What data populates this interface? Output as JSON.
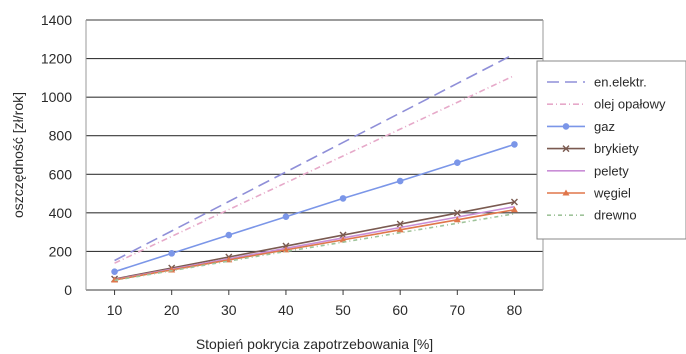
{
  "chart_data": {
    "type": "line",
    "title": "",
    "xlabel": "Stopień pokrycia zapotrzebowania [%]",
    "ylabel": "oszczędność [zł/rok]",
    "x": [
      10,
      20,
      30,
      40,
      50,
      60,
      70,
      80
    ],
    "xlim": [
      5,
      85
    ],
    "ylim": [
      0,
      1400
    ],
    "yticks": [
      0,
      200,
      400,
      600,
      800,
      1000,
      1200,
      1400
    ],
    "grid": "horizontal",
    "legend_position": "right",
    "series": [
      {
        "name": "en.elektr.",
        "color": "#8f8fd8",
        "dash": "12,6",
        "marker": "none",
        "values": [
          153,
          306,
          459,
          612,
          765,
          918,
          1071,
          1224
        ]
      },
      {
        "name": "olej opałowy",
        "color": "#e6a9c9",
        "dash": "6,3,1,3",
        "marker": "none",
        "values": [
          139,
          278,
          417,
          556,
          695,
          834,
          973,
          1112
        ]
      },
      {
        "name": "gaz",
        "color": "#7b96e8",
        "dash": "",
        "marker": "circle",
        "values": [
          95,
          190,
          285,
          380,
          475,
          565,
          660,
          755
        ]
      },
      {
        "name": "brykiety",
        "color": "#7a5a50",
        "dash": "",
        "marker": "x",
        "values": [
          57,
          114,
          171,
          228,
          285,
          342,
          399,
          456
        ]
      },
      {
        "name": "pelety",
        "color": "#c98ed6",
        "dash": "",
        "marker": "none",
        "values": [
          54,
          108,
          162,
          216,
          270,
          324,
          378,
          432
        ]
      },
      {
        "name": "węgiel",
        "color": "#e0764a",
        "dash": "",
        "marker": "triangle",
        "values": [
          52,
          104,
          156,
          208,
          260,
          312,
          364,
          416
        ]
      },
      {
        "name": "drewno",
        "color": "#9fc39a",
        "dash": "4,3,1,3",
        "marker": "none",
        "values": [
          50,
          100,
          150,
          200,
          248,
          297,
          346,
          395
        ]
      }
    ]
  }
}
